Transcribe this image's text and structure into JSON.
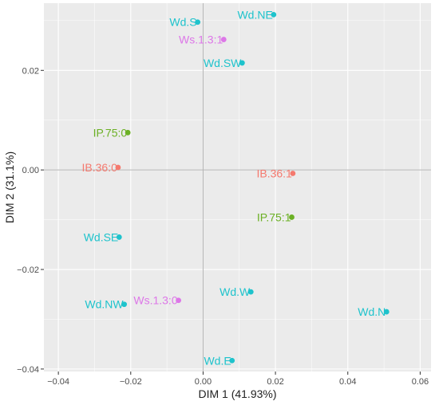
{
  "chart_data": {
    "type": "scatter",
    "title": "",
    "xlabel": "DIM 1 (41.93%)",
    "ylabel": "DIM 2 (31.1%)",
    "xlim": [
      -0.044,
      0.063
    ],
    "ylim": [
      -0.0405,
      0.0335
    ],
    "x_ticks": [
      {
        "value": -0.04,
        "label": "−0.04"
      },
      {
        "value": -0.02,
        "label": "−0.02"
      },
      {
        "value": 0.0,
        "label": "0.00"
      },
      {
        "value": 0.02,
        "label": "0.02"
      },
      {
        "value": 0.04,
        "label": "0.04"
      },
      {
        "value": 0.06,
        "label": "0.06"
      }
    ],
    "y_ticks": [
      {
        "value": 0.02,
        "label": "0.02"
      },
      {
        "value": 0.0,
        "label": "0.00"
      },
      {
        "value": -0.02,
        "label": "−0.02"
      },
      {
        "value": -0.04,
        "label": "−0.04"
      }
    ],
    "grid": true,
    "reference_lines": {
      "x": 0,
      "y": 0
    },
    "colors": {
      "cyan": "#1EC3CC",
      "violet": "#DD77E8",
      "green": "#6BB024",
      "salmon": "#F5796E",
      "panel": "#EBEBEB",
      "grid_major": "#ffffff",
      "reference": "#b3b3b3"
    },
    "points": [
      {
        "label": "Wd.NE",
        "x": 0.0195,
        "y": 0.0312,
        "color": "cyan"
      },
      {
        "label": "Wd.S",
        "x": -0.0015,
        "y": 0.0297,
        "color": "cyan"
      },
      {
        "label": "Ws.1.3:1",
        "x": 0.0057,
        "y": 0.0262,
        "color": "violet"
      },
      {
        "label": "Wd.SW",
        "x": 0.0108,
        "y": 0.0215,
        "color": "cyan"
      },
      {
        "label": "IP.75:0",
        "x": -0.0208,
        "y": 0.0075,
        "color": "green"
      },
      {
        "label": "IB.36:0",
        "x": -0.0235,
        "y": 0.0005,
        "color": "salmon"
      },
      {
        "label": "IB.36:1",
        "x": 0.0248,
        "y": -0.0007,
        "color": "salmon"
      },
      {
        "label": "IP.75:1",
        "x": 0.0245,
        "y": -0.0095,
        "color": "green"
      },
      {
        "label": "Wd.SE",
        "x": -0.0232,
        "y": -0.0135,
        "color": "cyan"
      },
      {
        "label": "Wd.W",
        "x": 0.0132,
        "y": -0.0245,
        "color": "cyan"
      },
      {
        "label": "Ws.1.3:0",
        "x": -0.0068,
        "y": -0.0262,
        "color": "violet"
      },
      {
        "label": "Wd.NW",
        "x": -0.0218,
        "y": -0.027,
        "color": "cyan"
      },
      {
        "label": "Wd.N",
        "x": 0.0507,
        "y": -0.0285,
        "color": "cyan"
      },
      {
        "label": "Wd.E",
        "x": 0.008,
        "y": -0.0383,
        "color": "cyan"
      }
    ]
  }
}
